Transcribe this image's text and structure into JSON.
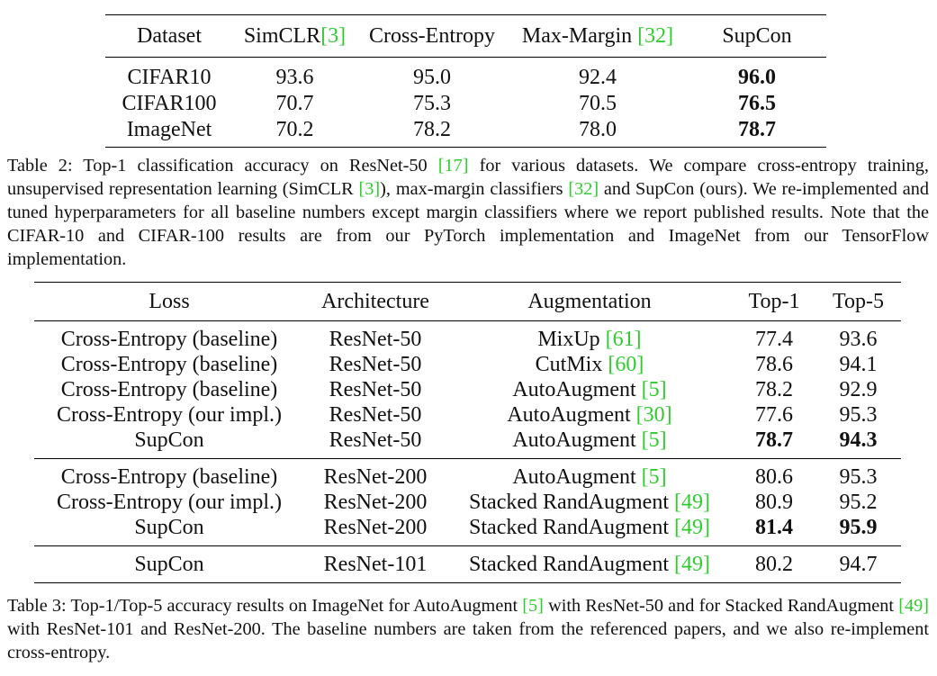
{
  "table2": {
    "headers": [
      "Dataset",
      "SimCLR",
      "[3]",
      "Cross-Entropy",
      "Max-Margin ",
      "[32]",
      "SupCon"
    ],
    "rows": [
      [
        "CIFAR10",
        "93.6",
        "95.0",
        "92.4",
        "96.0"
      ],
      [
        "CIFAR100",
        "70.7",
        "75.3",
        "70.5",
        "76.5"
      ],
      [
        "ImageNet",
        "70.2",
        "78.2",
        "78.0",
        "78.7"
      ]
    ]
  },
  "caption2": {
    "label": "Table 2:",
    "p1": " Top-1 classification accuracy on ResNet-50 ",
    "r1": "[17]",
    "p2": " for various datasets.  We compare cross-entropy training, unsupervised representation learning (SimCLR ",
    "r2": "[3]",
    "p3": "), max-margin classifiers ",
    "r3": "[32]",
    "p4": " and SupCon (ours). We re-implemented and tuned hyperparameters for all baseline numbers except margin classifiers where we report published results. Note that the CIFAR-10 and CIFAR-100 results are from our PyTorch implementation and ImageNet from our TensorFlow implementation."
  },
  "table3": {
    "headers": [
      "Loss",
      "Architecture",
      "Augmentation",
      "Top-1",
      "Top-5"
    ],
    "groups": [
      [
        {
          "loss": "Cross-Entropy (baseline)",
          "arch": "ResNet-50",
          "aug": "MixUp ",
          "ref": "[61]",
          "top1": "77.4",
          "top5": "93.6"
        },
        {
          "loss": "Cross-Entropy (baseline)",
          "arch": "ResNet-50",
          "aug": "CutMix ",
          "ref": "[60]",
          "top1": "78.6",
          "top5": "94.1"
        },
        {
          "loss": "Cross-Entropy (baseline)",
          "arch": "ResNet-50",
          "aug": "AutoAugment ",
          "ref": "[5]",
          "top1": "78.2",
          "top5": "92.9"
        },
        {
          "loss": "Cross-Entropy (our impl.)",
          "arch": "ResNet-50",
          "aug": "AutoAugment ",
          "ref": "[30]",
          "top1": "77.6",
          "top5": "95.3"
        },
        {
          "loss": "SupCon",
          "arch": "ResNet-50",
          "aug": "AutoAugment ",
          "ref": "[5]",
          "top1": "78.7",
          "top5": "94.3"
        }
      ],
      [
        {
          "loss": "Cross-Entropy (baseline)",
          "arch": "ResNet-200",
          "aug": "AutoAugment ",
          "ref": "[5]",
          "top1": "80.6",
          "top5": "95.3"
        },
        {
          "loss": "Cross-Entropy (our impl.)",
          "arch": "ResNet-200",
          "aug": "Stacked RandAugment ",
          "ref": "[49]",
          "top1": "80.9",
          "top5": "95.2"
        },
        {
          "loss": "SupCon",
          "arch": "ResNet-200",
          "aug": "Stacked RandAugment ",
          "ref": "[49]",
          "top1": "81.4",
          "top5": "95.9"
        }
      ],
      [
        {
          "loss": "SupCon",
          "arch": "ResNet-101",
          "aug": "Stacked RandAugment ",
          "ref": "[49]",
          "top1": "80.2",
          "top5": "94.7"
        }
      ]
    ]
  },
  "caption3": {
    "label": "Table 3:",
    "p1": " Top-1/Top-5 accuracy results on ImageNet for AutoAugment ",
    "r1": "[5]",
    "p2": " with ResNet-50 and for Stacked RandAugment ",
    "r2": "[49]",
    "p3": " with ResNet-101 and ResNet-200.  The baseline numbers are taken from the referenced papers, and we also re-implement cross-entropy."
  }
}
